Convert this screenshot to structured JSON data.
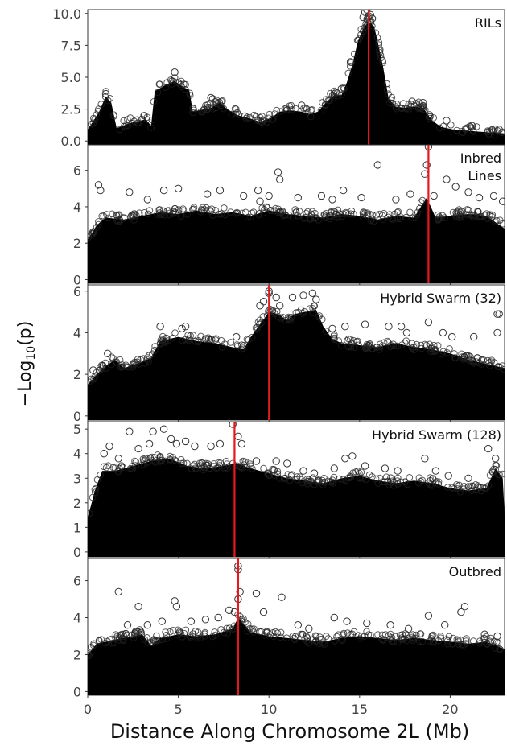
{
  "figure": {
    "ylabel": "−Log",
    "ylabel_sub": "10",
    "ylabel_tail": "(p)",
    "xlabel": "Distance Along Chromosome 2L (Mb)"
  },
  "chart_data": [
    {
      "type": "scatter",
      "title": "RILs",
      "xlim": [
        0,
        23
      ],
      "ylim": [
        -0.3,
        10.3
      ],
      "yticks": [
        0.0,
        2.5,
        5.0,
        7.5,
        10.0
      ],
      "ytick_labels": [
        "0.0",
        "2.5",
        "5.0",
        "7.5",
        "10.0"
      ],
      "xticks": [
        0,
        5,
        10,
        15,
        20
      ],
      "xtick_labels": [],
      "peak_line_x": 15.5,
      "grid": false,
      "envelope": [
        [
          0,
          0.9
        ],
        [
          0.6,
          2.2
        ],
        [
          1.0,
          3.5
        ],
        [
          1.3,
          3.0
        ],
        [
          1.6,
          1.0
        ],
        [
          2.3,
          1.4
        ],
        [
          3.2,
          1.7
        ],
        [
          3.5,
          1.2
        ],
        [
          3.7,
          3.9
        ],
        [
          4.3,
          4.4
        ],
        [
          4.8,
          4.7
        ],
        [
          5.3,
          4.2
        ],
        [
          5.6,
          4.0
        ],
        [
          5.8,
          2.3
        ],
        [
          6.8,
          2.6
        ],
        [
          7.3,
          3.0
        ],
        [
          7.7,
          2.5
        ],
        [
          8.3,
          2.0
        ],
        [
          8.9,
          1.8
        ],
        [
          9.5,
          1.5
        ],
        [
          10.1,
          1.8
        ],
        [
          10.6,
          2.3
        ],
        [
          11.2,
          2.4
        ],
        [
          11.8,
          2.3
        ],
        [
          12.3,
          2.1
        ],
        [
          12.7,
          2.3
        ],
        [
          13.2,
          3.1
        ],
        [
          13.6,
          3.6
        ],
        [
          14.0,
          3.6
        ],
        [
          14.3,
          4.6
        ],
        [
          14.6,
          6.0
        ],
        [
          14.9,
          7.8
        ],
        [
          15.2,
          8.8
        ],
        [
          15.5,
          9.4
        ],
        [
          15.8,
          9.0
        ],
        [
          16.0,
          7.8
        ],
        [
          16.3,
          5.8
        ],
        [
          16.6,
          3.3
        ],
        [
          17.0,
          2.7
        ],
        [
          17.5,
          2.6
        ],
        [
          18.0,
          2.7
        ],
        [
          18.5,
          2.6
        ],
        [
          19.0,
          1.6
        ],
        [
          19.5,
          1.1
        ],
        [
          20.2,
          0.9
        ],
        [
          21.0,
          0.8
        ],
        [
          22.0,
          0.7
        ],
        [
          23.0,
          0.6
        ]
      ],
      "outliers": [
        [
          1.0,
          3.7
        ],
        [
          4.8,
          5.4
        ],
        [
          6.8,
          3.4
        ],
        [
          6.9,
          3.3
        ],
        [
          11.8,
          2.8
        ],
        [
          14.0,
          4.1
        ],
        [
          14.5,
          6.2
        ],
        [
          15.3,
          10.1
        ],
        [
          15.4,
          10.3
        ],
        [
          15.6,
          9.9
        ],
        [
          15.2,
          9.7
        ],
        [
          15.7,
          9.6
        ],
        [
          15.5,
          9.8
        ],
        [
          17.9,
          3.1
        ],
        [
          18.5,
          3.0
        ],
        [
          19.8,
          1.6
        ],
        [
          21.2,
          1.2
        ],
        [
          22.7,
          0.9
        ]
      ]
    },
    {
      "type": "scatter",
      "title": "Inbred\nLines",
      "xlim": [
        0,
        23
      ],
      "ylim": [
        -0.2,
        7.4
      ],
      "yticks": [
        0,
        2,
        4,
        6
      ],
      "ytick_labels": [
        "0",
        "2",
        "4",
        "6"
      ],
      "xticks": [
        0,
        5,
        10,
        15,
        20
      ],
      "xtick_labels": [],
      "peak_line_x": 18.8,
      "grid": false,
      "envelope": [
        [
          0,
          2.2
        ],
        [
          0.5,
          3.0
        ],
        [
          1.0,
          3.4
        ],
        [
          2.0,
          3.3
        ],
        [
          3.0,
          3.5
        ],
        [
          4.0,
          3.7
        ],
        [
          5.0,
          3.6
        ],
        [
          6.0,
          3.8
        ],
        [
          7.0,
          3.6
        ],
        [
          8.0,
          3.7
        ],
        [
          9.0,
          3.5
        ],
        [
          10.0,
          3.8
        ],
        [
          11.0,
          3.6
        ],
        [
          12.0,
          3.5
        ],
        [
          13.0,
          3.4
        ],
        [
          14.0,
          3.6
        ],
        [
          15.0,
          3.5
        ],
        [
          16.0,
          3.3
        ],
        [
          17.0,
          3.5
        ],
        [
          18.0,
          3.4
        ],
        [
          18.7,
          4.5
        ],
        [
          19.2,
          3.4
        ],
        [
          20.0,
          3.5
        ],
        [
          21.0,
          3.6
        ],
        [
          22.0,
          3.5
        ],
        [
          23.0,
          2.8
        ]
      ],
      "outliers": [
        [
          0.6,
          5.2
        ],
        [
          0.7,
          4.9
        ],
        [
          2.3,
          4.8
        ],
        [
          3.3,
          4.4
        ],
        [
          4.2,
          4.9
        ],
        [
          5.0,
          5.0
        ],
        [
          6.6,
          4.7
        ],
        [
          7.3,
          4.9
        ],
        [
          8.6,
          4.6
        ],
        [
          9.4,
          4.9
        ],
        [
          9.5,
          4.3
        ],
        [
          10.0,
          4.6
        ],
        [
          10.5,
          5.9
        ],
        [
          10.6,
          5.5
        ],
        [
          11.6,
          4.5
        ],
        [
          12.9,
          4.6
        ],
        [
          13.5,
          4.4
        ],
        [
          14.1,
          4.9
        ],
        [
          15.1,
          4.5
        ],
        [
          16.0,
          6.3
        ],
        [
          17.0,
          4.4
        ],
        [
          17.8,
          4.7
        ],
        [
          18.6,
          5.8
        ],
        [
          18.7,
          6.3
        ],
        [
          18.8,
          7.3
        ],
        [
          19.1,
          4.6
        ],
        [
          19.8,
          5.5
        ],
        [
          20.3,
          5.1
        ],
        [
          21.0,
          4.8
        ],
        [
          21.6,
          4.5
        ],
        [
          22.4,
          4.6
        ],
        [
          22.9,
          4.3
        ]
      ]
    },
    {
      "type": "scatter",
      "title": "Hybrid Swarm (32)",
      "xlim": [
        0,
        23
      ],
      "ylim": [
        -0.2,
        6.3
      ],
      "yticks": [
        0,
        2,
        4,
        6
      ],
      "ytick_labels": [
        "0",
        "2",
        "4",
        "6"
      ],
      "xticks": [
        0,
        5,
        10,
        15,
        20
      ],
      "xtick_labels": [],
      "peak_line_x": 10.0,
      "grid": false,
      "envelope": [
        [
          0,
          1.5
        ],
        [
          0.5,
          2.0
        ],
        [
          1.0,
          2.4
        ],
        [
          1.5,
          2.7
        ],
        [
          2.0,
          2.3
        ],
        [
          3.0,
          2.6
        ],
        [
          3.5,
          2.8
        ],
        [
          4.0,
          3.6
        ],
        [
          5.0,
          3.8
        ],
        [
          6.0,
          3.6
        ],
        [
          7.0,
          3.5
        ],
        [
          8.0,
          3.3
        ],
        [
          8.6,
          3.2
        ],
        [
          9.0,
          3.8
        ],
        [
          9.5,
          4.4
        ],
        [
          10.0,
          5.0
        ],
        [
          10.5,
          4.9
        ],
        [
          11.0,
          4.6
        ],
        [
          11.4,
          4.9
        ],
        [
          12.0,
          5.0
        ],
        [
          12.6,
          5.1
        ],
        [
          13.0,
          4.3
        ],
        [
          13.5,
          3.7
        ],
        [
          14.0,
          3.5
        ],
        [
          15.0,
          3.4
        ],
        [
          16.0,
          3.3
        ],
        [
          17.0,
          3.5
        ],
        [
          18.0,
          3.3
        ],
        [
          19.0,
          3.2
        ],
        [
          20.0,
          3.0
        ],
        [
          21.0,
          2.7
        ],
        [
          22.0,
          2.5
        ],
        [
          23.0,
          2.3
        ]
      ],
      "outliers": [
        [
          0.3,
          2.2
        ],
        [
          1.1,
          3.0
        ],
        [
          3.4,
          2.9
        ],
        [
          4.0,
          4.3
        ],
        [
          5.2,
          4.2
        ],
        [
          5.4,
          4.3
        ],
        [
          6.5,
          3.7
        ],
        [
          8.2,
          3.8
        ],
        [
          9.5,
          5.3
        ],
        [
          9.7,
          5.5
        ],
        [
          10.0,
          6.0
        ],
        [
          10.0,
          5.9
        ],
        [
          10.4,
          5.7
        ],
        [
          10.6,
          5.3
        ],
        [
          11.3,
          5.7
        ],
        [
          11.9,
          5.8
        ],
        [
          12.4,
          5.9
        ],
        [
          12.6,
          5.6
        ],
        [
          13.5,
          4.2
        ],
        [
          14.2,
          4.3
        ],
        [
          15.3,
          4.4
        ],
        [
          16.6,
          4.3
        ],
        [
          17.3,
          4.3
        ],
        [
          17.6,
          4.0
        ],
        [
          18.8,
          4.5
        ],
        [
          19.6,
          4.0
        ],
        [
          20.1,
          3.8
        ],
        [
          21.3,
          3.8
        ],
        [
          22.6,
          4.9
        ],
        [
          22.7,
          4.9
        ],
        [
          22.6,
          4.0
        ]
      ]
    },
    {
      "type": "scatter",
      "title": "Hybrid Swarm (128)",
      "xlim": [
        0,
        23
      ],
      "ylim": [
        -0.2,
        5.3
      ],
      "yticks": [
        0,
        1,
        2,
        3,
        4,
        5
      ],
      "ytick_labels": [
        "0",
        "1",
        "2",
        "3",
        "4",
        "5"
      ],
      "xticks": [
        0,
        5,
        10,
        15,
        20
      ],
      "xtick_labels": [],
      "peak_line_x": 8.1,
      "grid": false,
      "envelope": [
        [
          0,
          1.4
        ],
        [
          0.4,
          2.5
        ],
        [
          0.8,
          3.3
        ],
        [
          1.5,
          3.3
        ],
        [
          2.5,
          3.5
        ],
        [
          3.5,
          3.7
        ],
        [
          4.5,
          3.8
        ],
        [
          5.5,
          3.5
        ],
        [
          6.5,
          3.4
        ],
        [
          7.5,
          3.5
        ],
        [
          8.2,
          3.6
        ],
        [
          9.0,
          3.4
        ],
        [
          10.0,
          3.2
        ],
        [
          11.0,
          3.0
        ],
        [
          12.0,
          2.9
        ],
        [
          13.0,
          2.8
        ],
        [
          14.0,
          3.0
        ],
        [
          15.0,
          3.1
        ],
        [
          16.0,
          2.9
        ],
        [
          17.0,
          2.8
        ],
        [
          18.0,
          2.9
        ],
        [
          19.0,
          2.8
        ],
        [
          20.0,
          2.6
        ],
        [
          21.0,
          2.5
        ],
        [
          22.0,
          2.6
        ],
        [
          22.5,
          3.4
        ],
        [
          22.9,
          3.0
        ],
        [
          23.0,
          1.5
        ]
      ],
      "outliers": [
        [
          0.9,
          4.0
        ],
        [
          1.2,
          4.3
        ],
        [
          1.7,
          3.8
        ],
        [
          2.3,
          4.9
        ],
        [
          2.8,
          4.2
        ],
        [
          3.4,
          4.4
        ],
        [
          3.6,
          4.9
        ],
        [
          4.2,
          5.0
        ],
        [
          4.6,
          4.6
        ],
        [
          4.9,
          4.4
        ],
        [
          5.4,
          4.5
        ],
        [
          5.9,
          4.3
        ],
        [
          6.8,
          4.3
        ],
        [
          7.3,
          4.4
        ],
        [
          8.0,
          5.2
        ],
        [
          8.3,
          4.7
        ],
        [
          8.5,
          4.4
        ],
        [
          9.3,
          3.7
        ],
        [
          10.4,
          3.7
        ],
        [
          11.0,
          3.6
        ],
        [
          11.9,
          3.3
        ],
        [
          12.5,
          3.2
        ],
        [
          13.6,
          3.4
        ],
        [
          14.2,
          3.8
        ],
        [
          14.6,
          3.9
        ],
        [
          15.3,
          3.5
        ],
        [
          16.4,
          3.4
        ],
        [
          17.1,
          3.3
        ],
        [
          18.6,
          3.8
        ],
        [
          19.2,
          3.3
        ],
        [
          19.9,
          3.1
        ],
        [
          21.0,
          3.0
        ],
        [
          22.1,
          4.2
        ],
        [
          22.5,
          3.8
        ]
      ]
    },
    {
      "type": "scatter",
      "title": "Outbred",
      "xlim": [
        0,
        23
      ],
      "ylim": [
        -0.2,
        7.2
      ],
      "yticks": [
        0,
        2,
        4,
        6
      ],
      "ytick_labels": [
        "0",
        "2",
        "4",
        "6"
      ],
      "xticks": [
        0,
        5,
        10,
        15,
        20
      ],
      "xtick_labels": [
        "0",
        "5",
        "10",
        "15",
        "20"
      ],
      "peak_line_x": 8.3,
      "grid": false,
      "envelope": [
        [
          0,
          2.0
        ],
        [
          0.5,
          2.6
        ],
        [
          1.0,
          2.7
        ],
        [
          2.0,
          2.9
        ],
        [
          3.0,
          3.1
        ],
        [
          3.5,
          2.5
        ],
        [
          4.0,
          2.9
        ],
        [
          5.0,
          3.1
        ],
        [
          6.0,
          3.0
        ],
        [
          7.0,
          3.1
        ],
        [
          8.0,
          3.4
        ],
        [
          8.3,
          4.0
        ],
        [
          9.0,
          3.2
        ],
        [
          10.0,
          3.0
        ],
        [
          11.0,
          2.9
        ],
        [
          12.0,
          2.8
        ],
        [
          13.0,
          2.7
        ],
        [
          14.0,
          2.9
        ],
        [
          15.0,
          3.0
        ],
        [
          16.0,
          2.9
        ],
        [
          17.0,
          2.8
        ],
        [
          18.0,
          2.9
        ],
        [
          19.0,
          2.8
        ],
        [
          20.0,
          2.7
        ],
        [
          21.0,
          2.6
        ],
        [
          22.0,
          2.7
        ],
        [
          23.0,
          2.3
        ]
      ],
      "outliers": [
        [
          1.7,
          5.4
        ],
        [
          2.2,
          3.6
        ],
        [
          2.8,
          4.6
        ],
        [
          3.3,
          3.6
        ],
        [
          4.1,
          3.8
        ],
        [
          4.8,
          4.9
        ],
        [
          4.9,
          4.6
        ],
        [
          5.7,
          3.8
        ],
        [
          6.5,
          3.9
        ],
        [
          7.2,
          4.0
        ],
        [
          7.8,
          4.4
        ],
        [
          8.1,
          4.3
        ],
        [
          8.3,
          6.8
        ],
        [
          8.3,
          6.6
        ],
        [
          8.4,
          5.4
        ],
        [
          8.3,
          5.0
        ],
        [
          9.3,
          5.3
        ],
        [
          9.7,
          4.3
        ],
        [
          10.7,
          5.1
        ],
        [
          11.6,
          3.6
        ],
        [
          12.2,
          3.4
        ],
        [
          13.6,
          4.0
        ],
        [
          14.3,
          3.8
        ],
        [
          15.4,
          3.7
        ],
        [
          16.7,
          3.6
        ],
        [
          17.7,
          3.4
        ],
        [
          18.8,
          4.1
        ],
        [
          19.7,
          3.6
        ],
        [
          20.6,
          4.3
        ],
        [
          20.8,
          4.6
        ],
        [
          21.9,
          3.1
        ],
        [
          22.6,
          3.0
        ]
      ]
    }
  ]
}
